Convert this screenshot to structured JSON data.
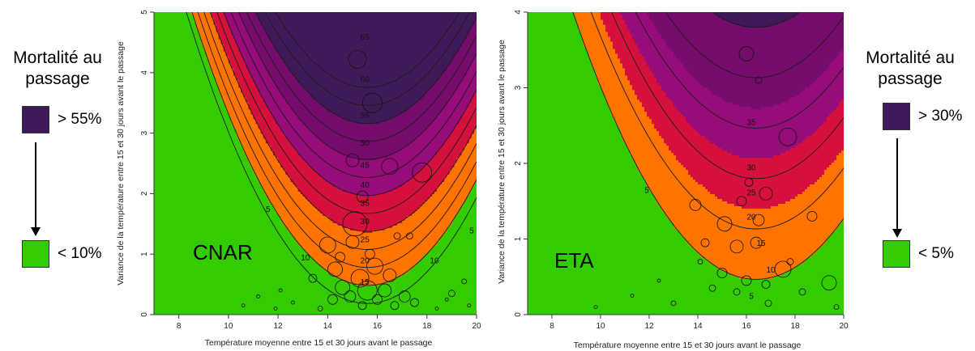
{
  "legend_left": {
    "title": "Mortalité au passage",
    "high_label": "> 55%",
    "low_label": "< 10%"
  },
  "legend_right": {
    "title": "Mortalité au passage",
    "high_label": "> 30%",
    "low_label": "< 5%"
  },
  "colors": {
    "high": "#3f1a58",
    "mid_high": "#760d6d",
    "magenta": "#960c78",
    "red": "#d5103c",
    "orange": "#ff7300",
    "green": "#33cc00",
    "contour": "#1a1a1a"
  },
  "chart_data": [
    {
      "type": "heatmap",
      "panel_label": "CNAR",
      "xlabel": "Température moyenne entre 15 et 30 jours avant le passage",
      "ylabel": "Variance de la température entre 15 et 30 jours avant le passage",
      "xlim": [
        7,
        20
      ],
      "ylim": [
        0,
        5
      ],
      "xticks": [
        "8",
        "10",
        "12",
        "14",
        "16",
        "18",
        "20"
      ],
      "yticks": [
        "0",
        "1",
        "2",
        "3",
        "4",
        "5"
      ],
      "surface": {
        "x_opt": 15.6,
        "a": 16.8,
        "b": 0.95,
        "c": 10.5,
        "d": 1.9
      },
      "contour_levels": [
        5,
        10,
        15,
        20,
        25,
        30,
        35,
        40,
        45,
        50,
        55,
        60,
        65
      ],
      "color_breaks": [
        10,
        25,
        35,
        45,
        55
      ],
      "contour_labels": [
        {
          "text": "65",
          "x": 15.5,
          "y": 4.6
        },
        {
          "text": "60",
          "x": 15.5,
          "y": 3.9
        },
        {
          "text": "55",
          "x": 15.5,
          "y": 3.3
        },
        {
          "text": "50",
          "x": 15.5,
          "y": 2.85
        },
        {
          "text": "45",
          "x": 15.5,
          "y": 2.48
        },
        {
          "text": "40",
          "x": 15.5,
          "y": 2.15
        },
        {
          "text": "35",
          "x": 15.5,
          "y": 1.85
        },
        {
          "text": "30",
          "x": 15.5,
          "y": 1.55
        },
        {
          "text": "25",
          "x": 15.5,
          "y": 1.25
        },
        {
          "text": "20",
          "x": 15.5,
          "y": 0.9
        },
        {
          "text": "15",
          "x": 15.5,
          "y": 0.55
        },
        {
          "text": "10",
          "x": 13.1,
          "y": 0.95
        },
        {
          "text": "10",
          "x": 18.3,
          "y": 0.9
        },
        {
          "text": "5",
          "x": 11.6,
          "y": 1.75
        },
        {
          "text": "5",
          "x": 19.8,
          "y": 1.4
        }
      ],
      "points": [
        {
          "x": 15.2,
          "y": 4.22,
          "s": 11
        },
        {
          "x": 15.8,
          "y": 3.5,
          "s": 12
        },
        {
          "x": 15.0,
          "y": 2.55,
          "s": 8
        },
        {
          "x": 16.5,
          "y": 2.45,
          "s": 10
        },
        {
          "x": 17.8,
          "y": 2.35,
          "s": 12
        },
        {
          "x": 15.1,
          "y": 1.5,
          "s": 15
        },
        {
          "x": 15.4,
          "y": 1.95,
          "s": 7
        },
        {
          "x": 15.0,
          "y": 1.2,
          "s": 8
        },
        {
          "x": 14.0,
          "y": 1.15,
          "s": 10
        },
        {
          "x": 15.9,
          "y": 0.8,
          "s": 10
        },
        {
          "x": 14.3,
          "y": 0.75,
          "s": 9
        },
        {
          "x": 16.5,
          "y": 0.65,
          "s": 8
        },
        {
          "x": 15.3,
          "y": 0.6,
          "s": 11
        },
        {
          "x": 14.6,
          "y": 0.45,
          "s": 9
        },
        {
          "x": 15.6,
          "y": 0.4,
          "s": 12
        },
        {
          "x": 16.3,
          "y": 0.4,
          "s": 8
        },
        {
          "x": 14.9,
          "y": 0.3,
          "s": 7
        },
        {
          "x": 16.0,
          "y": 0.25,
          "s": 6
        },
        {
          "x": 17.1,
          "y": 0.3,
          "s": 7
        },
        {
          "x": 14.2,
          "y": 0.25,
          "s": 6
        },
        {
          "x": 13.4,
          "y": 0.6,
          "s": 5
        },
        {
          "x": 15.4,
          "y": 0.15,
          "s": 5
        },
        {
          "x": 16.7,
          "y": 0.15,
          "s": 5
        },
        {
          "x": 17.5,
          "y": 0.2,
          "s": 5
        },
        {
          "x": 16.8,
          "y": 1.3,
          "s": 4
        },
        {
          "x": 17.3,
          "y": 1.3,
          "s": 4
        },
        {
          "x": 19.0,
          "y": 0.35,
          "s": 4
        },
        {
          "x": 19.5,
          "y": 0.55,
          "s": 3
        },
        {
          "x": 14.5,
          "y": 0.95,
          "s": 6
        },
        {
          "x": 15.7,
          "y": 1.0,
          "s": 6
        },
        {
          "x": 13.7,
          "y": 0.1,
          "s": 3
        },
        {
          "x": 12.6,
          "y": 0.2,
          "s": 2
        },
        {
          "x": 11.9,
          "y": 0.1,
          "s": 2
        },
        {
          "x": 12.1,
          "y": 0.4,
          "s": 2
        },
        {
          "x": 11.2,
          "y": 0.3,
          "s": 2
        },
        {
          "x": 10.6,
          "y": 0.15,
          "s": 2
        },
        {
          "x": 18.4,
          "y": 0.1,
          "s": 2
        },
        {
          "x": 18.8,
          "y": 0.25,
          "s": 2
        },
        {
          "x": 19.7,
          "y": 0.15,
          "s": 2
        }
      ]
    },
    {
      "type": "heatmap",
      "panel_label": "ETA",
      "xlabel": "Température moyenne entre 15 et 30 jours avant le passage",
      "ylabel": "Variance de la température entre 15 et 30 jours avant le passage",
      "xlim": [
        7,
        20
      ],
      "ylim": [
        0,
        4
      ],
      "xticks": [
        "8",
        "10",
        "12",
        "14",
        "16",
        "18",
        "20"
      ],
      "yticks": [
        "0",
        "1",
        "2",
        "3",
        "4"
      ],
      "surface": {
        "x_opt": 16.4,
        "a": 7.5,
        "b": 0.56,
        "c": 9.0,
        "d": 1.5
      },
      "contour_levels": [
        5,
        10,
        15,
        20,
        25,
        30,
        35
      ],
      "color_breaks": [
        5,
        12,
        17,
        22,
        30
      ],
      "contour_labels": [
        {
          "text": "35",
          "x": 16.2,
          "y": 2.55
        },
        {
          "text": "30",
          "x": 16.2,
          "y": 1.95
        },
        {
          "text": "25",
          "x": 16.2,
          "y": 1.62
        },
        {
          "text": "20",
          "x": 16.2,
          "y": 1.3
        },
        {
          "text": "15",
          "x": 16.6,
          "y": 0.95
        },
        {
          "text": "10",
          "x": 17.0,
          "y": 0.6
        },
        {
          "text": "5",
          "x": 16.2,
          "y": 0.25
        },
        {
          "text": "5",
          "x": 11.9,
          "y": 1.65
        }
      ],
      "points": [
        {
          "x": 16.0,
          "y": 3.45,
          "s": 9
        },
        {
          "x": 16.5,
          "y": 3.1,
          "s": 4
        },
        {
          "x": 17.7,
          "y": 2.35,
          "s": 11
        },
        {
          "x": 16.8,
          "y": 1.6,
          "s": 8
        },
        {
          "x": 16.1,
          "y": 1.75,
          "s": 5
        },
        {
          "x": 15.8,
          "y": 1.5,
          "s": 6
        },
        {
          "x": 13.9,
          "y": 1.45,
          "s": 7
        },
        {
          "x": 15.1,
          "y": 1.2,
          "s": 9
        },
        {
          "x": 16.5,
          "y": 1.25,
          "s": 7
        },
        {
          "x": 18.7,
          "y": 1.3,
          "s": 6
        },
        {
          "x": 14.3,
          "y": 0.95,
          "s": 5
        },
        {
          "x": 15.6,
          "y": 0.9,
          "s": 8
        },
        {
          "x": 16.4,
          "y": 0.95,
          "s": 7
        },
        {
          "x": 17.5,
          "y": 0.6,
          "s": 10
        },
        {
          "x": 19.4,
          "y": 0.42,
          "s": 9
        },
        {
          "x": 15.0,
          "y": 0.55,
          "s": 6
        },
        {
          "x": 16.0,
          "y": 0.45,
          "s": 6
        },
        {
          "x": 16.8,
          "y": 0.4,
          "s": 5
        },
        {
          "x": 14.6,
          "y": 0.35,
          "s": 4
        },
        {
          "x": 15.6,
          "y": 0.3,
          "s": 4
        },
        {
          "x": 16.9,
          "y": 0.15,
          "s": 4
        },
        {
          "x": 18.3,
          "y": 0.3,
          "s": 4
        },
        {
          "x": 17.8,
          "y": 0.7,
          "s": 4
        },
        {
          "x": 13.0,
          "y": 0.15,
          "s": 3
        },
        {
          "x": 12.4,
          "y": 0.45,
          "s": 2
        },
        {
          "x": 11.3,
          "y": 0.25,
          "s": 2
        },
        {
          "x": 9.8,
          "y": 0.1,
          "s": 2
        },
        {
          "x": 19.7,
          "y": 0.1,
          "s": 3
        },
        {
          "x": 14.1,
          "y": 0.7,
          "s": 3
        }
      ]
    }
  ]
}
